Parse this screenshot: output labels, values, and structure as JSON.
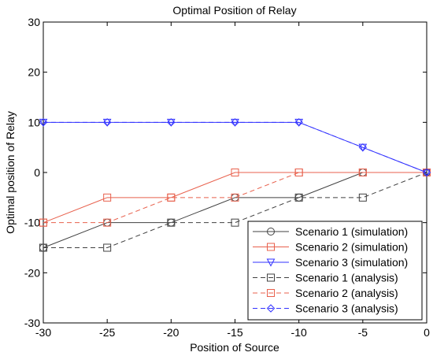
{
  "chart_data": {
    "type": "line",
    "title": "Optimal Position of Relay",
    "xlabel": "Position of Source",
    "ylabel": "Optimal position of Relay",
    "xlim": [
      -30,
      0
    ],
    "ylim": [
      -30,
      30
    ],
    "xticks": [
      -30,
      -25,
      -20,
      -15,
      -10,
      -5,
      0
    ],
    "yticks": [
      -30,
      -20,
      -10,
      0,
      10,
      20,
      30
    ],
    "grid": false,
    "legend_position": "bottom-right",
    "series": [
      {
        "name": "Scenario 1 (simulation)",
        "color": "#404040",
        "dash": "solid",
        "marker": "circle",
        "x": [
          -30,
          -25,
          -20,
          -15,
          -10,
          -5,
          0
        ],
        "y": [
          -15,
          -10,
          -10,
          -5,
          -5,
          0,
          0
        ]
      },
      {
        "name": "Scenario 2 (simulation)",
        "color": "#e8604c",
        "dash": "solid",
        "marker": "square",
        "x": [
          -30,
          -25,
          -20,
          -15,
          -10,
          -5,
          0
        ],
        "y": [
          -10,
          -5,
          -5,
          0,
          0,
          0,
          0
        ]
      },
      {
        "name": "Scenario 3 (simulation)",
        "color": "#3333ff",
        "dash": "solid",
        "marker": "triangle-down",
        "x": [
          -30,
          -25,
          -20,
          -15,
          -10,
          -5,
          0
        ],
        "y": [
          10,
          10,
          10,
          10,
          10,
          5,
          0
        ]
      },
      {
        "name": "Scenario 1 (analysis)",
        "color": "#404040",
        "dash": "dashed",
        "marker": "square",
        "x": [
          -30,
          -25,
          -20,
          -15,
          -10,
          -5,
          0
        ],
        "y": [
          -15,
          -15,
          -10,
          -10,
          -5,
          -5,
          0
        ]
      },
      {
        "name": "Scenario 2 (analysis)",
        "color": "#e8604c",
        "dash": "dashed",
        "marker": "square",
        "x": [
          -30,
          -25,
          -20,
          -15,
          -10,
          -5,
          0
        ],
        "y": [
          -10,
          -10,
          -5,
          -5,
          0,
          0,
          0
        ]
      },
      {
        "name": "Scenario 3 (analysis)",
        "color": "#3333ff",
        "dash": "dashed",
        "marker": "diamond",
        "x": [
          -30,
          -25,
          -20,
          -15,
          -10,
          -5,
          0
        ],
        "y": [
          10,
          10,
          10,
          10,
          10,
          5,
          0
        ]
      }
    ]
  }
}
